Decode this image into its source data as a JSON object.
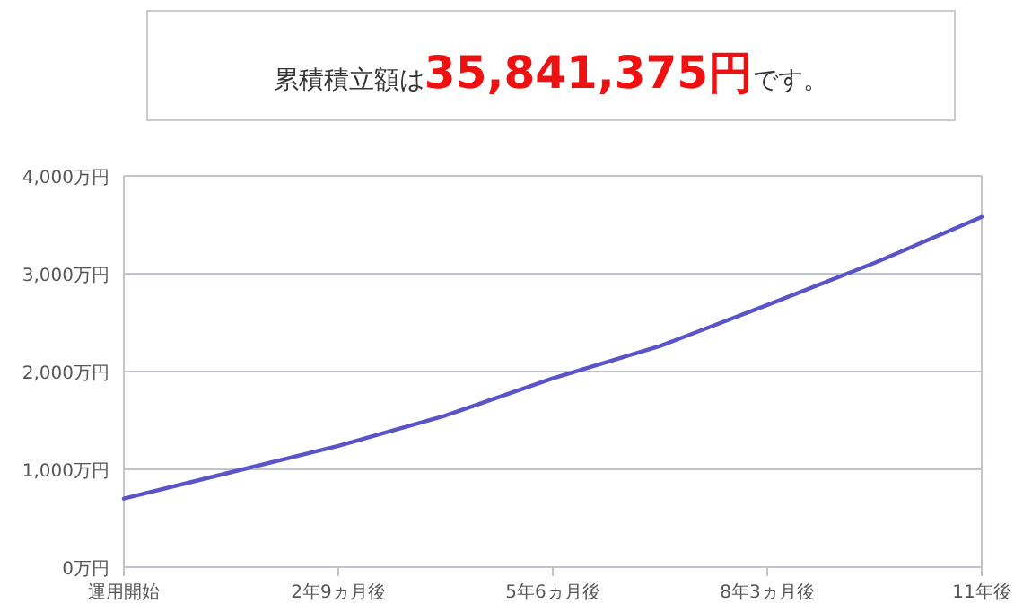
{
  "chart_data": {
    "type": "line",
    "title": "累積積立額は**35,841,375円**です。",
    "categories": [
      "運用開始",
      null,
      "2年9ヵ月後",
      null,
      "5年6ヵ月後",
      null,
      "8年3ヵ月後",
      null,
      "11年後"
    ],
    "series": [
      {
        "color": "#5b54c8",
        "values": [
          700,
          970,
          1240,
          1550,
          1930,
          2260,
          2680,
          3110,
          3580
        ]
      }
    ],
    "ylim": [
      0,
      4000
    ],
    "yticks": [
      {
        "value": 0,
        "label": "0万円"
      },
      {
        "value": 1000,
        "label": "1,000万円"
      },
      {
        "value": 2000,
        "label": "2,000万円"
      },
      {
        "value": 3000,
        "label": "3,000万円"
      },
      {
        "value": 4000,
        "label": "4,000万円"
      }
    ],
    "grid": "y",
    "marker": "none",
    "line_style": "solid"
  }
}
